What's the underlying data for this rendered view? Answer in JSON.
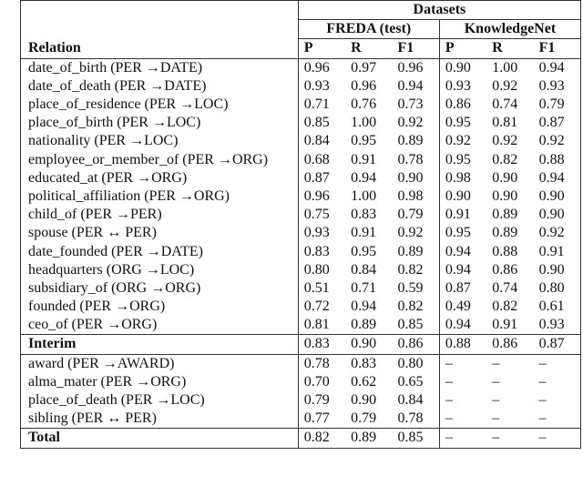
{
  "header": {
    "datasets": "Datasets",
    "groups": [
      "FREDA (test)",
      "KnowledgeNet"
    ],
    "relation": "Relation",
    "metrics": [
      "P",
      "R",
      "F1",
      "P",
      "R",
      "F1"
    ]
  },
  "rows": [
    {
      "relation": "date_of_birth (PER →DATE)",
      "values": [
        "0.96",
        "0.97",
        "0.96",
        "0.90",
        "1.00",
        "0.94"
      ]
    },
    {
      "relation": "date_of_death (PER →DATE)",
      "values": [
        "0.93",
        "0.96",
        "0.94",
        "0.93",
        "0.92",
        "0.93"
      ]
    },
    {
      "relation": "place_of_residence (PER →LOC)",
      "values": [
        "0.71",
        "0.76",
        "0.73",
        "0.86",
        "0.74",
        "0.79"
      ]
    },
    {
      "relation": "place_of_birth (PER →LOC)",
      "values": [
        "0.85",
        "1.00",
        "0.92",
        "0.95",
        "0.81",
        "0.87"
      ]
    },
    {
      "relation": "nationality (PER →LOC)",
      "values": [
        "0.84",
        "0.95",
        "0.89",
        "0.92",
        "0.92",
        "0.92"
      ]
    },
    {
      "relation": "employee_or_member_of (PER →ORG)",
      "values": [
        "0.68",
        "0.91",
        "0.78",
        "0.95",
        "0.82",
        "0.88"
      ]
    },
    {
      "relation": "educated_at (PER →ORG)",
      "values": [
        "0.87",
        "0.94",
        "0.90",
        "0.98",
        "0.90",
        "0.94"
      ]
    },
    {
      "relation": "political_affiliation (PER →ORG)",
      "values": [
        "0.96",
        "1.00",
        "0.98",
        "0.90",
        "0.90",
        "0.90"
      ]
    },
    {
      "relation": "child_of (PER →PER)",
      "values": [
        "0.75",
        "0.83",
        "0.79",
        "0.91",
        "0.89",
        "0.90"
      ]
    },
    {
      "relation": "spouse (PER ↔ PER)",
      "values": [
        "0.93",
        "0.91",
        "0.92",
        "0.95",
        "0.89",
        "0.92"
      ]
    },
    {
      "relation": "date_founded (PER →DATE)",
      "values": [
        "0.83",
        "0.95",
        "0.89",
        "0.94",
        "0.88",
        "0.91"
      ]
    },
    {
      "relation": "headquarters (ORG →LOC)",
      "values": [
        "0.80",
        "0.84",
        "0.82",
        "0.94",
        "0.86",
        "0.90"
      ]
    },
    {
      "relation": "subsidiary_of (ORG →ORG)",
      "values": [
        "0.51",
        "0.71",
        "0.59",
        "0.87",
        "0.74",
        "0.80"
      ]
    },
    {
      "relation": "founded (PER →ORG)",
      "values": [
        "0.72",
        "0.94",
        "0.82",
        "0.49",
        "0.82",
        "0.61"
      ]
    },
    {
      "relation": "ceo_of (PER →ORG)",
      "values": [
        "0.81",
        "0.89",
        "0.85",
        "0.94",
        "0.91",
        "0.93"
      ]
    }
  ],
  "interim": {
    "relation": "Interim",
    "values": [
      "0.83",
      "0.90",
      "0.86",
      "0.88",
      "0.86",
      "0.87"
    ]
  },
  "rows2": [
    {
      "relation": "award (PER →AWARD)",
      "values": [
        "0.78",
        "0.83",
        "0.80",
        "–",
        "–",
        "–"
      ]
    },
    {
      "relation": "alma_mater (PER →ORG)",
      "values": [
        "0.70",
        "0.62",
        "0.65",
        "–",
        "–",
        "–"
      ]
    },
    {
      "relation": "place_of_death (PER →LOC)",
      "values": [
        "0.79",
        "0.90",
        "0.84",
        "–",
        "–",
        "–"
      ]
    },
    {
      "relation": "sibling (PER ↔ PER)",
      "values": [
        "0.77",
        "0.79",
        "0.78",
        "–",
        "–",
        "–"
      ]
    }
  ],
  "total": {
    "relation": "Total",
    "values": [
      "0.82",
      "0.89",
      "0.85",
      "–",
      "–",
      "–"
    ]
  }
}
